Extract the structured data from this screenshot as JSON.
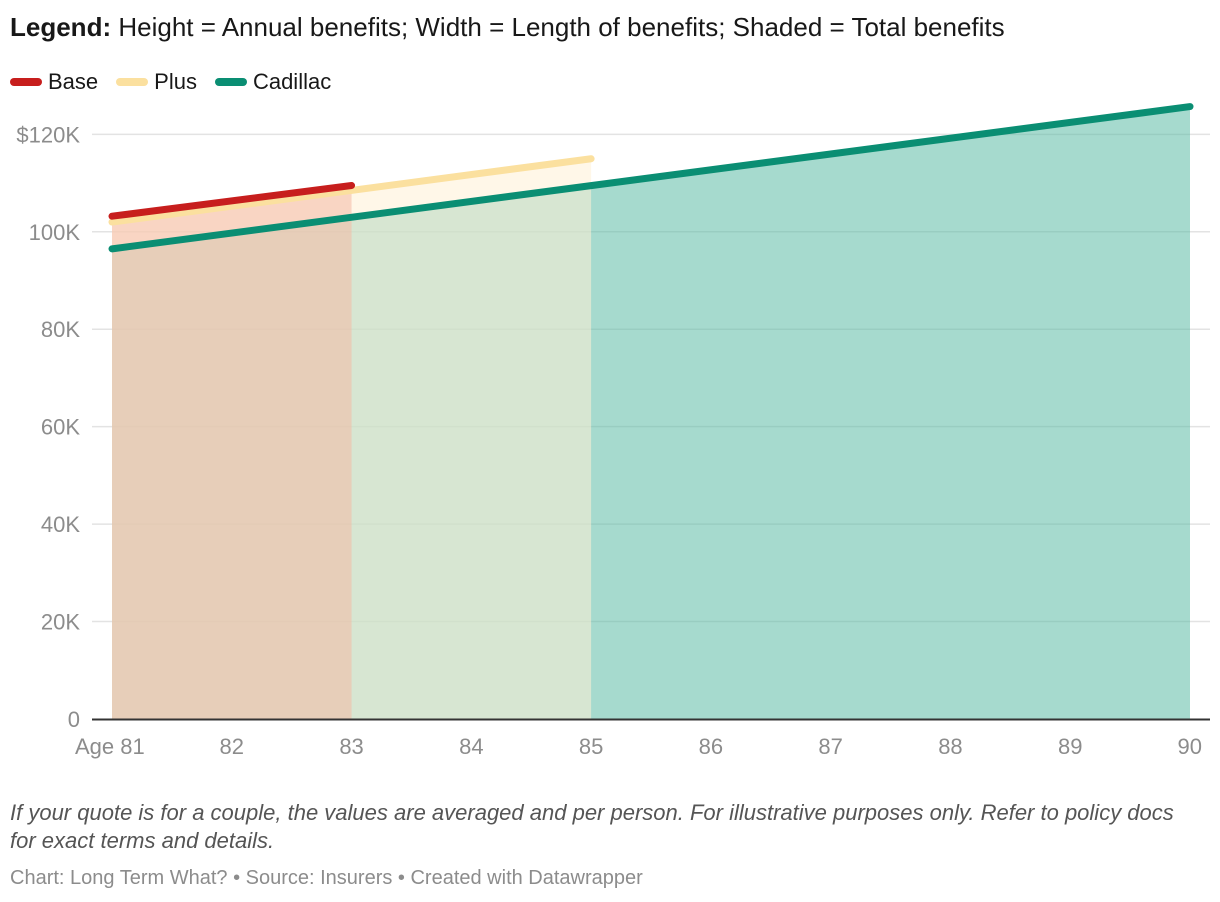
{
  "header": {
    "legend_label": "Legend:",
    "legend_text": "Height = Annual benefits; Width = Length of benefits; Shaded = Total benefits"
  },
  "chart_data": {
    "type": "area",
    "x_axis": {
      "range": [
        81,
        90
      ],
      "ticks": [
        81,
        82,
        83,
        84,
        85,
        86,
        87,
        88,
        89,
        90
      ],
      "tick_labels": [
        "Age 81",
        "82",
        "83",
        "84",
        "85",
        "86",
        "87",
        "88",
        "89",
        "90"
      ]
    },
    "y_axis": {
      "range": [
        0,
        125000
      ],
      "ticks": [
        0,
        20000,
        40000,
        60000,
        80000,
        100000,
        120000
      ],
      "tick_labels": [
        "0",
        "20K",
        "40K",
        "60K",
        "80K",
        "100K",
        "$120K"
      ]
    },
    "grid": true,
    "legend_position": "top-left",
    "series": [
      {
        "name": "Base",
        "color": "#c71e1d",
        "fill": "#f4b9a4",
        "x": [
          81,
          83
        ],
        "y": [
          103200,
          109500
        ]
      },
      {
        "name": "Plus",
        "color": "#fbe09f",
        "fill": "#fff1d6",
        "x": [
          81,
          85
        ],
        "y": [
          102000,
          115000
        ]
      },
      {
        "name": "Cadillac",
        "color": "#0a8e73",
        "fill": "#5cbca5",
        "x": [
          81,
          90
        ],
        "y": [
          96500,
          125700
        ]
      }
    ]
  },
  "footer": {
    "note": "If your quote is for a couple, the values are averaged and per person. For illustrative purposes only. Refer to policy docs for exact terms and details.",
    "credit": "Chart: Long Term What? • Source: Insurers • Created with Datawrapper"
  }
}
